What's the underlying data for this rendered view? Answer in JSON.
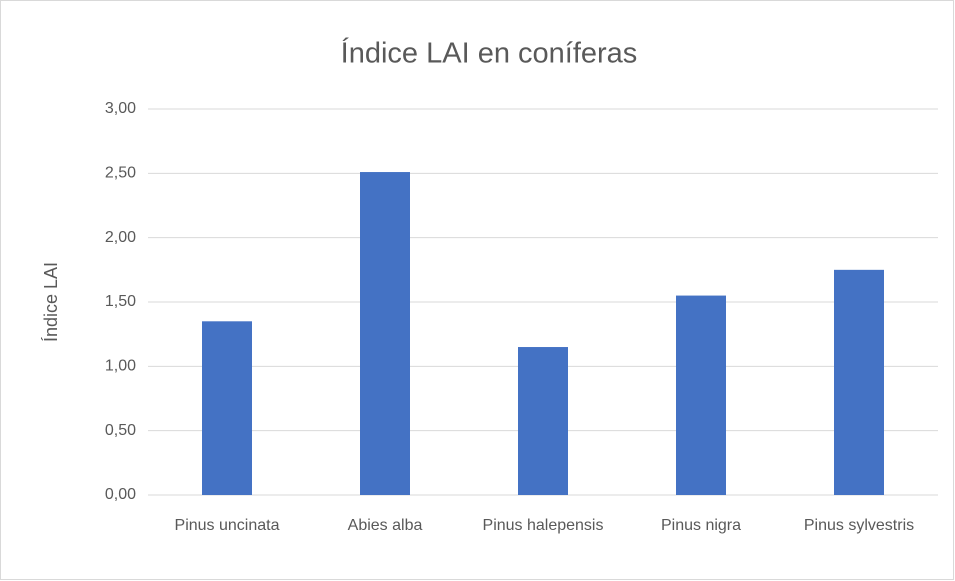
{
  "chart_data": {
    "type": "bar",
    "title": "Índice LAI en coníferas",
    "y_label": "Índice LAI",
    "categories": [
      "Pinus uncinata",
      "Abies alba",
      "Pinus halepensis",
      "Pinus nigra",
      "Pinus sylvestris"
    ],
    "values": [
      1.35,
      2.51,
      1.15,
      1.55,
      1.75
    ],
    "color": "#4472c4",
    "ylim": [
      0,
      3
    ],
    "yticks": [
      {
        "value": 0,
        "label": "0,00"
      },
      {
        "value": 0.5,
        "label": "0,50"
      },
      {
        "value": 1,
        "label": "1,00"
      },
      {
        "value": 1.5,
        "label": "1,50"
      },
      {
        "value": 2,
        "label": "2,00"
      },
      {
        "value": 2.5,
        "label": "2,50"
      },
      {
        "value": 3,
        "label": "3,00"
      }
    ],
    "grid": true
  }
}
